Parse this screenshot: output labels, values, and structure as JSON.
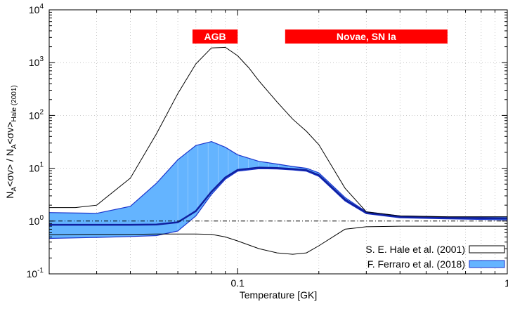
{
  "chart_data": {
    "type": "line",
    "xlabel": "Temperature [GK]",
    "ylabel_main": "N",
    "ylabel_parts": [
      {
        "t": "N",
        "s": "n"
      },
      {
        "t": "A",
        "s": "sub"
      },
      {
        "t": "<σv> / N",
        "s": "n"
      },
      {
        "t": "A",
        "s": "sub"
      },
      {
        "t": "<σv>",
        "s": "n"
      },
      {
        "t": "Hale (2001)",
        "s": "sub"
      }
    ],
    "xscale": "log",
    "yscale": "log",
    "xlim": [
      0.02,
      1
    ],
    "ylim": [
      0.1,
      10000
    ],
    "x_ticks": [
      {
        "v": 0.1,
        "label": "0.1"
      },
      {
        "v": 1,
        "label": "1"
      }
    ],
    "y_ticks": [
      {
        "v": 0.1,
        "base": "10",
        "exp": "-1"
      },
      {
        "v": 1,
        "base": "10",
        "exp": "0"
      },
      {
        "v": 10,
        "base": "10",
        "exp": "1"
      },
      {
        "v": 100,
        "base": "10",
        "exp": "2"
      },
      {
        "v": 1000,
        "base": "10",
        "exp": "3"
      },
      {
        "v": 10000,
        "base": "10",
        "exp": "4"
      }
    ],
    "grid": true,
    "legend_position": "bottom-right",
    "bands": [
      {
        "label": "AGB",
        "x_from": 0.068,
        "x_to": 0.1,
        "color": "#ff0000"
      },
      {
        "label": "Novae, SN Ia",
        "x_from": 0.15,
        "x_to": 0.6,
        "color": "#ff0000"
      }
    ],
    "reference_line": {
      "y": 1,
      "style": "dash-dot"
    },
    "series": [
      {
        "name": "S. E. Hale et al. (2001)",
        "kind": "envelope",
        "color": "#000000",
        "upper": {
          "x": [
            0.02,
            0.025,
            0.03,
            0.04,
            0.05,
            0.06,
            0.07,
            0.08,
            0.09,
            0.1,
            0.11,
            0.12,
            0.14,
            0.16,
            0.18,
            0.2,
            0.25,
            0.3,
            0.4,
            0.6,
            1.0
          ],
          "y": [
            1.8,
            1.8,
            2.0,
            6.5,
            45,
            260,
            950,
            1900,
            1950,
            1350,
            800,
            450,
            180,
            85,
            50,
            28,
            4.2,
            1.5,
            1.25,
            1.2,
            1.2
          ]
        },
        "lower": {
          "x": [
            0.02,
            0.03,
            0.04,
            0.05,
            0.06,
            0.07,
            0.08,
            0.09,
            0.1,
            0.12,
            0.14,
            0.16,
            0.18,
            0.2,
            0.25,
            0.3,
            0.4,
            0.6,
            1.0
          ],
          "y": [
            0.55,
            0.56,
            0.56,
            0.57,
            0.57,
            0.57,
            0.56,
            0.5,
            0.42,
            0.3,
            0.25,
            0.235,
            0.25,
            0.34,
            0.7,
            0.78,
            0.8,
            0.8,
            0.8
          ]
        }
      },
      {
        "name": "F. Ferraro et al. (2018)",
        "kind": "band",
        "color": "#64b4ff",
        "edge_color": "#1a33cc",
        "upper": {
          "x": [
            0.02,
            0.03,
            0.04,
            0.05,
            0.06,
            0.07,
            0.08,
            0.09,
            0.1,
            0.12,
            0.14,
            0.16,
            0.18,
            0.2,
            0.25,
            0.3,
            0.4,
            0.6,
            1.0
          ],
          "y": [
            1.45,
            1.4,
            1.9,
            5.2,
            14.5,
            27,
            32,
            25,
            18,
            13.5,
            12,
            10.8,
            10,
            8.2,
            2.8,
            1.5,
            1.25,
            1.2,
            1.2
          ]
        },
        "lower": {
          "x": [
            0.02,
            0.03,
            0.04,
            0.05,
            0.06,
            0.07,
            0.08,
            0.09,
            0.1,
            0.12,
            0.14,
            0.16,
            0.18,
            0.2,
            0.25,
            0.3,
            0.4,
            0.6,
            1.0
          ],
          "y": [
            0.47,
            0.49,
            0.51,
            0.53,
            0.65,
            1.25,
            3.2,
            6.2,
            8.8,
            9.8,
            9.7,
            9.3,
            8.8,
            7.0,
            2.4,
            1.38,
            1.15,
            1.1,
            1.05
          ]
        },
        "median": {
          "x": [
            0.02,
            0.03,
            0.04,
            0.05,
            0.06,
            0.07,
            0.08,
            0.09,
            0.1,
            0.12,
            0.14,
            0.16,
            0.18,
            0.2,
            0.25,
            0.3,
            0.4,
            0.6,
            1.0
          ],
          "y": [
            0.85,
            0.85,
            0.85,
            0.86,
            0.95,
            1.55,
            3.6,
            6.7,
            9.3,
            10.3,
            10.1,
            9.7,
            9.2,
            7.4,
            2.55,
            1.44,
            1.2,
            1.15,
            1.12
          ]
        }
      }
    ]
  }
}
